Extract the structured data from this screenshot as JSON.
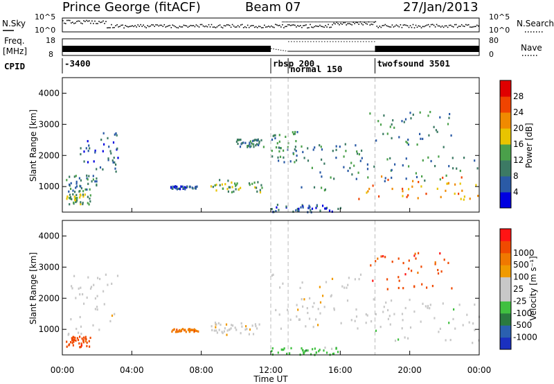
{
  "header": {
    "station": "Prince George (fitACF)",
    "beam": "Beam 07",
    "date": "27/Jan/2013"
  },
  "noise_panel": {
    "left_label": "N.Sky",
    "right_label": "N.Search",
    "left_ticks": [
      "10^5",
      "10^0"
    ],
    "right_ticks": [
      "10^5",
      "10^0"
    ]
  },
  "freq_panel": {
    "left_label_1": "Freq.",
    "left_label_2": "[MHz]",
    "right_label": "Nave",
    "left_ticks": [
      "18",
      "8"
    ],
    "right_ticks": [
      "80",
      "0"
    ]
  },
  "cpid": {
    "label": "CPID",
    "entries": [
      {
        "text": "-3400",
        "hour": 0.0
      },
      {
        "text": "rbsp 200",
        "hour": 12.0
      },
      {
        "text": "normal 150",
        "hour": 13.0
      },
      {
        "text": "twofsound 3501",
        "hour": 18.0
      }
    ]
  },
  "colors": {
    "power_scale": [
      "#0000e0",
      "#2a5aa6",
      "#3c7a64",
      "#4aa04a",
      "#e8c400",
      "#f08a00",
      "#f04400",
      "#e00000"
    ],
    "velocity_scale": [
      "#ff1414",
      "#f04a00",
      "#f07800",
      "#f09a00",
      "#c8c8c8",
      "#c8c8c8",
      "#40c040",
      "#2a7a40",
      "#2a60b0",
      "#1a30c0"
    ]
  },
  "chart_data": [
    {
      "type": "heatmap",
      "title": "",
      "name": "power",
      "ylabel": "Slant Range [km]",
      "xlabel": "",
      "xlim_hours": [
        0,
        24
      ],
      "ylim_km": [
        180,
        4500
      ],
      "y_ticks": [
        "1000",
        "2000",
        "3000",
        "4000"
      ],
      "colorbar_label": "Power [dB]",
      "colorbar_ticks": [
        "4",
        "8",
        "12",
        "16",
        "20",
        "24",
        "28"
      ],
      "colorbar_range": [
        0,
        30
      ],
      "echo_regions": [
        {
          "t0": 0.2,
          "t1": 1.6,
          "r0": 450,
          "r1": 800,
          "level": 12
        },
        {
          "t0": 0.2,
          "t1": 2.0,
          "r0": 850,
          "r1": 1400,
          "level": 10
        },
        {
          "t0": 1.0,
          "t1": 3.2,
          "r0": 1500,
          "r1": 2800,
          "level": 6
        },
        {
          "t0": 6.2,
          "t1": 7.8,
          "r0": 950,
          "r1": 1050,
          "level": 4
        },
        {
          "t0": 8.5,
          "t1": 11.5,
          "r0": 850,
          "r1": 1250,
          "level": 14
        },
        {
          "t0": 10.0,
          "t1": 11.6,
          "r0": 2300,
          "r1": 2550,
          "level": 8
        },
        {
          "t0": 12.0,
          "t1": 13.5,
          "r0": 1800,
          "r1": 2800,
          "level": 10
        },
        {
          "t0": 13.5,
          "t1": 17.5,
          "r0": 900,
          "r1": 2400,
          "level": 9
        },
        {
          "t0": 17.0,
          "t1": 24.0,
          "r0": 600,
          "r1": 1400,
          "level": 22
        },
        {
          "t0": 16.5,
          "t1": 24.0,
          "r0": 1200,
          "r1": 2000,
          "level": 8
        },
        {
          "t0": 17.5,
          "t1": 22.5,
          "r0": 2300,
          "r1": 3500,
          "level": 9
        },
        {
          "t0": 12.0,
          "t1": 16.0,
          "r0": 200,
          "r1": 450,
          "level": 6
        }
      ]
    },
    {
      "type": "heatmap",
      "title": "",
      "name": "velocity",
      "ylabel": "Slant Range [km]",
      "xlabel": "Time UT",
      "xlim_hours": [
        0,
        24
      ],
      "ylim_km": [
        180,
        4500
      ],
      "y_ticks": [
        "1000",
        "2000",
        "3000",
        "4000"
      ],
      "x_ticks": [
        "00:00",
        "04:00",
        "08:00",
        "12:00",
        "16:00",
        "20:00",
        "00:00"
      ],
      "colorbar_label": "Velocity [m s⁻¹]",
      "colorbar_ticks": [
        "1000",
        "500",
        "100",
        "25",
        "-25",
        "-100",
        "-500",
        "-1000"
      ],
      "echo_regions": [
        {
          "t0": 0.2,
          "t1": 1.6,
          "r0": 450,
          "r1": 800,
          "vclass": 1
        },
        {
          "t0": 0.2,
          "t1": 3.2,
          "r0": 850,
          "r1": 2800,
          "vclass": 4
        },
        {
          "t0": 8.5,
          "t1": 11.5,
          "r0": 850,
          "r1": 1250,
          "vclass": 4
        },
        {
          "t0": 6.2,
          "t1": 7.8,
          "r0": 950,
          "r1": 1050,
          "vclass": 2
        },
        {
          "t0": 12.0,
          "t1": 17.5,
          "r0": 900,
          "r1": 2800,
          "vclass": 4
        },
        {
          "t0": 17.0,
          "t1": 24.0,
          "r0": 600,
          "r1": 2000,
          "vclass": 5
        },
        {
          "t0": 17.5,
          "t1": 22.5,
          "r0": 2300,
          "r1": 3500,
          "vclass": 1
        },
        {
          "t0": 12.0,
          "t1": 16.0,
          "r0": 200,
          "r1": 450,
          "vclass": 6
        }
      ]
    }
  ]
}
